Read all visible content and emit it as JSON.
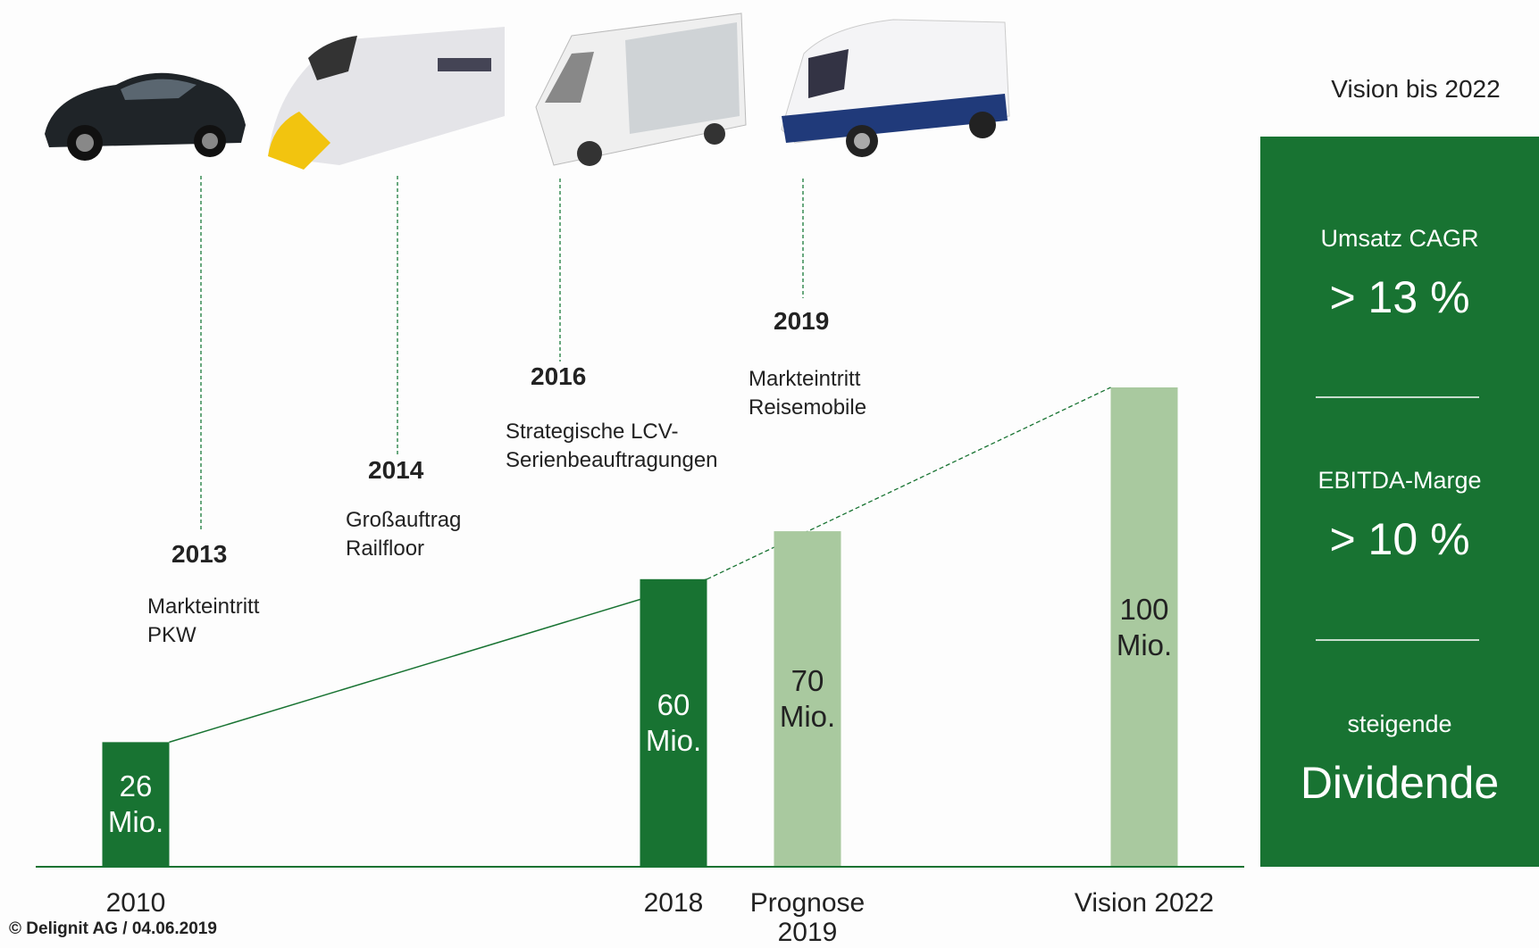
{
  "chart_data": {
    "type": "bar",
    "categories": [
      "2010",
      "2018",
      "Prognose 2019",
      "Vision 2022"
    ],
    "values": [
      26,
      60,
      70,
      100
    ],
    "value_labels": [
      "26 Mio.",
      "60 Mio.",
      "70 Mio.",
      "100 Mio."
    ],
    "colors": [
      "#187332",
      "#187332",
      "#a9c99f",
      "#a9c99f"
    ],
    "ylim": [
      0,
      100
    ]
  },
  "timeline": [
    {
      "year": "2013",
      "text": "Markteintritt PKW"
    },
    {
      "year": "2014",
      "text": "Großauftrag Railfloor"
    },
    {
      "year": "2016",
      "text": "Strategische LCV-Serienbeauftragungen"
    },
    {
      "year": "2019",
      "text": "Markteintritt Reisemobile"
    }
  ],
  "sidebar": {
    "heading": "Vision bis 2022",
    "items": [
      {
        "label": "Umsatz CAGR",
        "value": "> 13 %"
      },
      {
        "label": "EBITDA-Marge",
        "value": "> 10 %"
      },
      {
        "label": "steigende",
        "value": "Dividende"
      }
    ]
  },
  "footer": "© Delignit AG / 04.06.2019"
}
